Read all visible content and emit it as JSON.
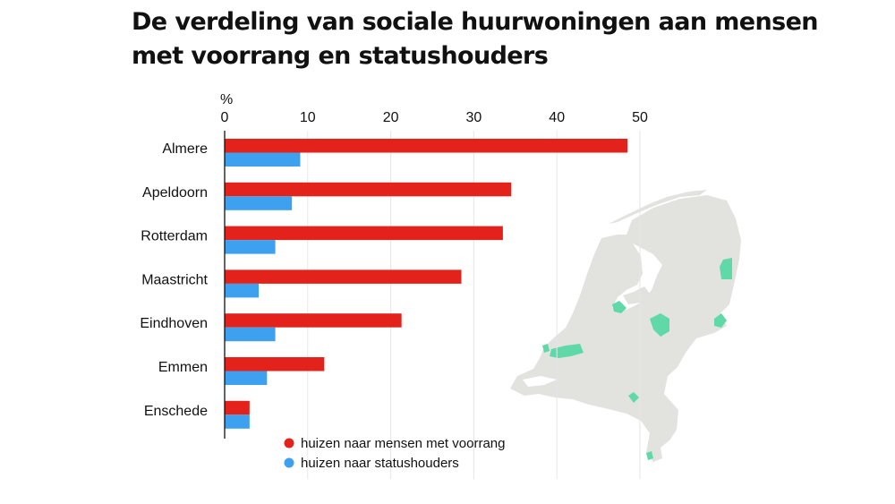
{
  "title": "De verdeling van sociale huurwoningen aan mensen met voorrang en statushouders",
  "chart_data": {
    "type": "bar",
    "orientation": "horizontal",
    "title": "De verdeling van sociale huurwoningen aan mensen met voorrang en statushouders",
    "unit": "%",
    "xlim": [
      0,
      50
    ],
    "xticks": [
      0,
      10,
      20,
      30,
      40,
      50
    ],
    "x_axis_position": "top",
    "grid": true,
    "legend_position": "bottom",
    "categories": [
      "Almere",
      "Apeldoorn",
      "Rotterdam",
      "Maastricht",
      "Eindhoven",
      "Emmen",
      "Enschede"
    ],
    "series": [
      {
        "name": "huizen naar mensen met voorrang",
        "color": "#e3231b",
        "values": [
          48.5,
          34.5,
          33.5,
          28.5,
          21.3,
          12.0,
          3.0
        ]
      },
      {
        "name": "huizen naar statushouders",
        "color": "#3ea1ef",
        "values": [
          9.1,
          8.1,
          6.1,
          4.1,
          6.1,
          5.1,
          3.0
        ]
      }
    ]
  },
  "map": {
    "land_color": "#e2e2df",
    "highlight_color": "#5fd9a8",
    "icon": "netherlands-map-icon"
  }
}
